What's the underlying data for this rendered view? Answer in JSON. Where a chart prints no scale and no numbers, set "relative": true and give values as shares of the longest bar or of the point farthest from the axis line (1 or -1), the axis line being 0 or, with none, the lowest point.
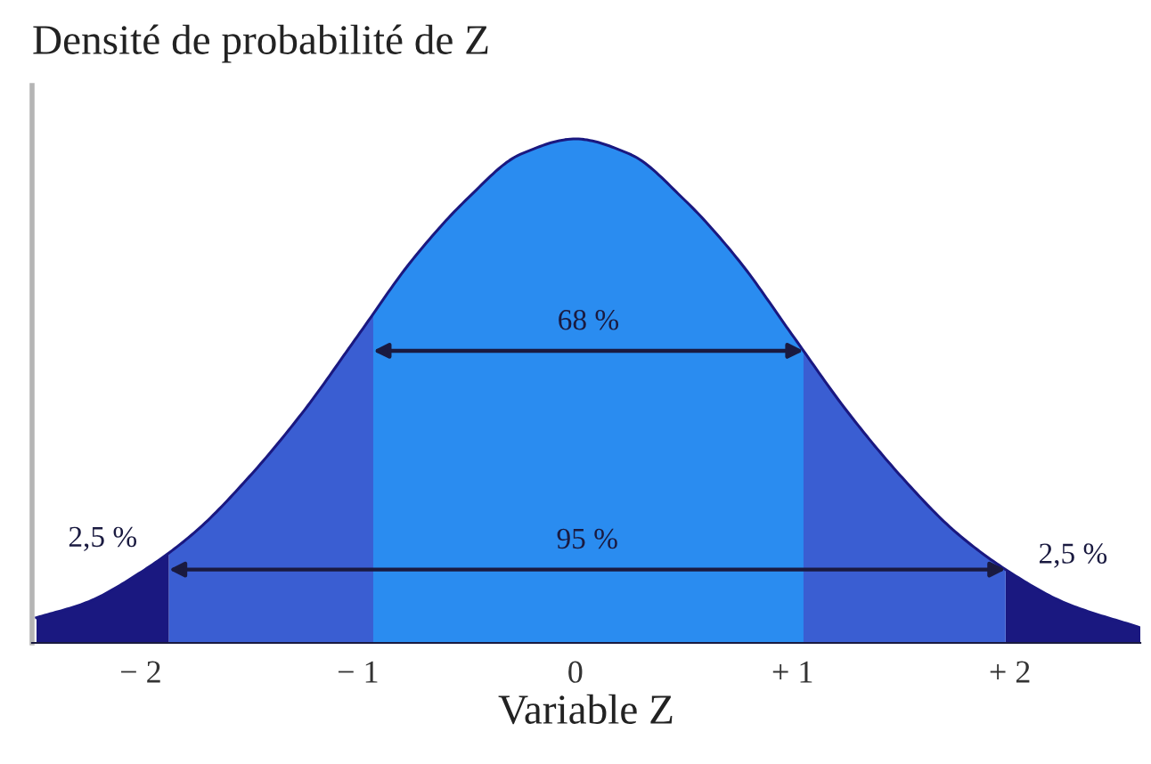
{
  "chart_data": {
    "type": "line",
    "relative": true,
    "ylabel": "Densité de probabilité de Z",
    "xlabel": "Variable Z",
    "xlim": [
      -2.5,
      2.6
    ],
    "xticks": [
      {
        "value": -2,
        "label": "− 2"
      },
      {
        "value": -1,
        "label": "− 1"
      },
      0,
      {
        "value": 1,
        "label": "+ 1"
      },
      {
        "value": 2,
        "label": "+ 2"
      }
    ],
    "tick_labels": "x",
    "grid": false,
    "x": [
      -2.48,
      -2.25,
      -2,
      -1.75,
      -1.5,
      -1.25,
      -1,
      -0.75,
      -0.5,
      -0.25,
      0,
      0.25,
      0.5,
      0.75,
      1,
      1.25,
      1.5,
      1.75,
      2,
      2.25,
      2.6
    ],
    "series": [
      {
        "color": "#1a1880",
        "values": [
          0.05,
          0.08,
          0.14,
          0.22,
          0.33,
          0.46,
          0.61,
          0.76,
          0.88,
          0.97,
          1.0,
          0.97,
          0.88,
          0.76,
          0.61,
          0.46,
          0.33,
          0.22,
          0.14,
          0.08,
          0.03
        ]
      }
    ],
    "bands": [
      {
        "axis": "x",
        "from": -2.48,
        "to": -1.87,
        "label": "2,5 %",
        "color": "#1a1880"
      },
      {
        "axis": "x",
        "from": 1.98,
        "to": 2.6,
        "label": "2,5 %",
        "color": "#1a1880"
      },
      {
        "axis": "x",
        "from": -1.87,
        "to": 1.98,
        "label": "95 %",
        "color": "#3a5ed2"
      },
      {
        "axis": "x",
        "from": -0.93,
        "to": 1.05,
        "label": "68 %",
        "color": "#2a8cf0"
      }
    ]
  }
}
